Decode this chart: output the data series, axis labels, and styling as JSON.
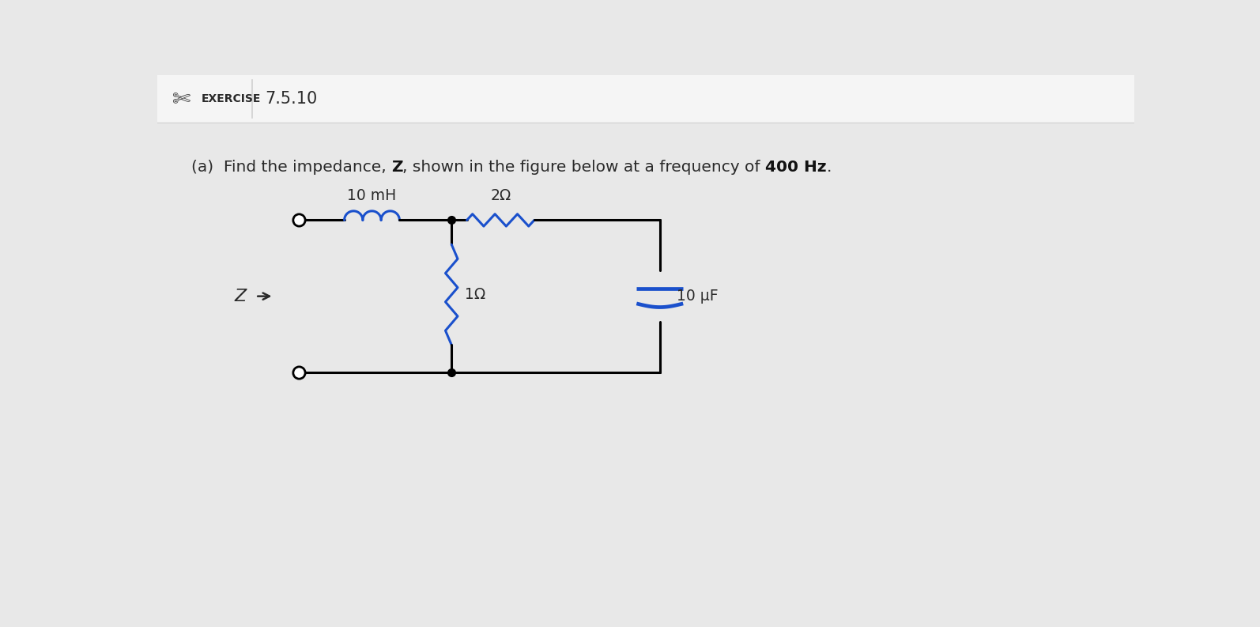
{
  "bg_color": "#e8e8e8",
  "header_bg": "#f5f5f5",
  "header_line_color": "#d0d0d0",
  "exercise_label": "EXERCISE",
  "exercise_number": "7.5.10",
  "inductor_label": "10 mH",
  "resistor1_label": "2Ω",
  "resistor2_label": "1Ω",
  "capacitor_label": "10 μF",
  "Z_label": "Z",
  "wire_color": "#000000",
  "comp_color": "#1a50cc",
  "label_color": "#2a2a2a",
  "arrow_color": "#2a2a2a",
  "text_color": "#2a2a2a",
  "bold_color": "#111111"
}
